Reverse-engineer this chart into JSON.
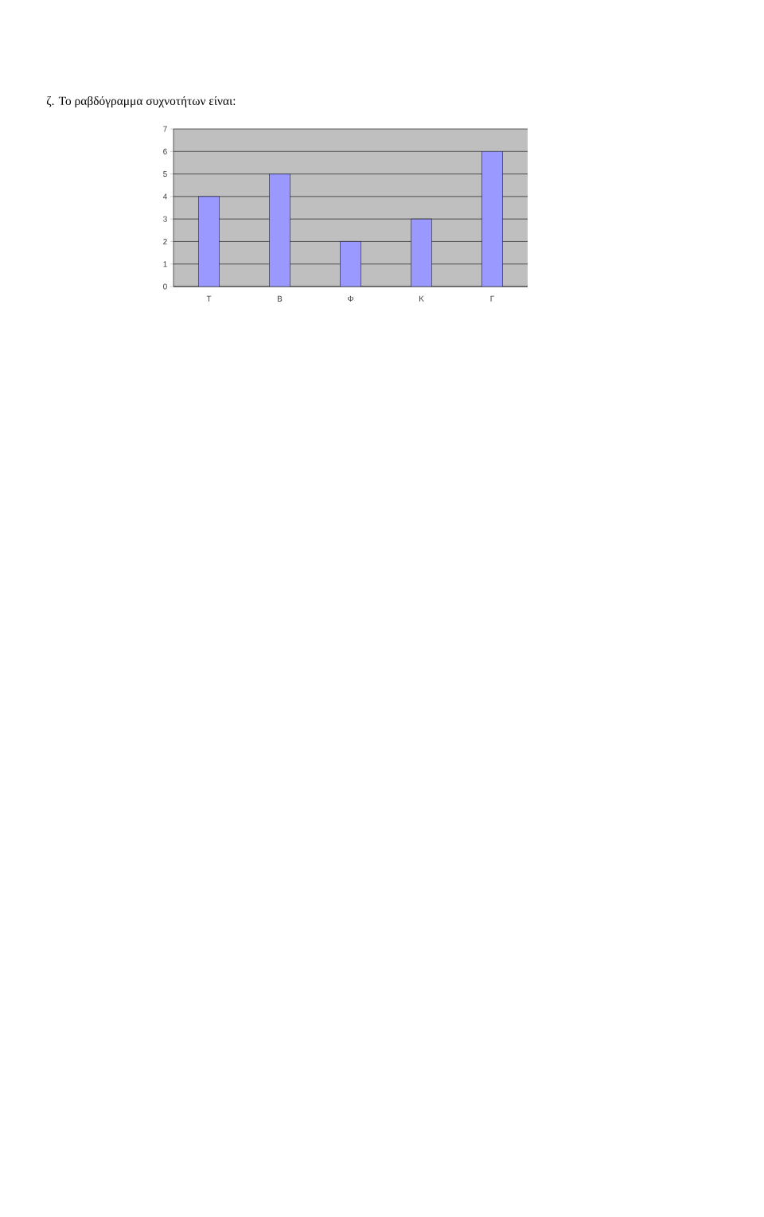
{
  "chart_data": {
    "type": "bar",
    "title": "ζ.   Το ραβδόγραμμα συχνοτήτων είναι:",
    "categories": [
      "Τ",
      "Β",
      "Φ",
      "Κ",
      "Γ"
    ],
    "values": [
      4,
      5,
      2,
      3,
      6
    ],
    "color": "#9999ff",
    "ylim": [
      0,
      7
    ],
    "yticks": [
      0,
      1,
      2,
      3,
      4,
      5,
      6,
      7
    ],
    "grid": "y"
  }
}
